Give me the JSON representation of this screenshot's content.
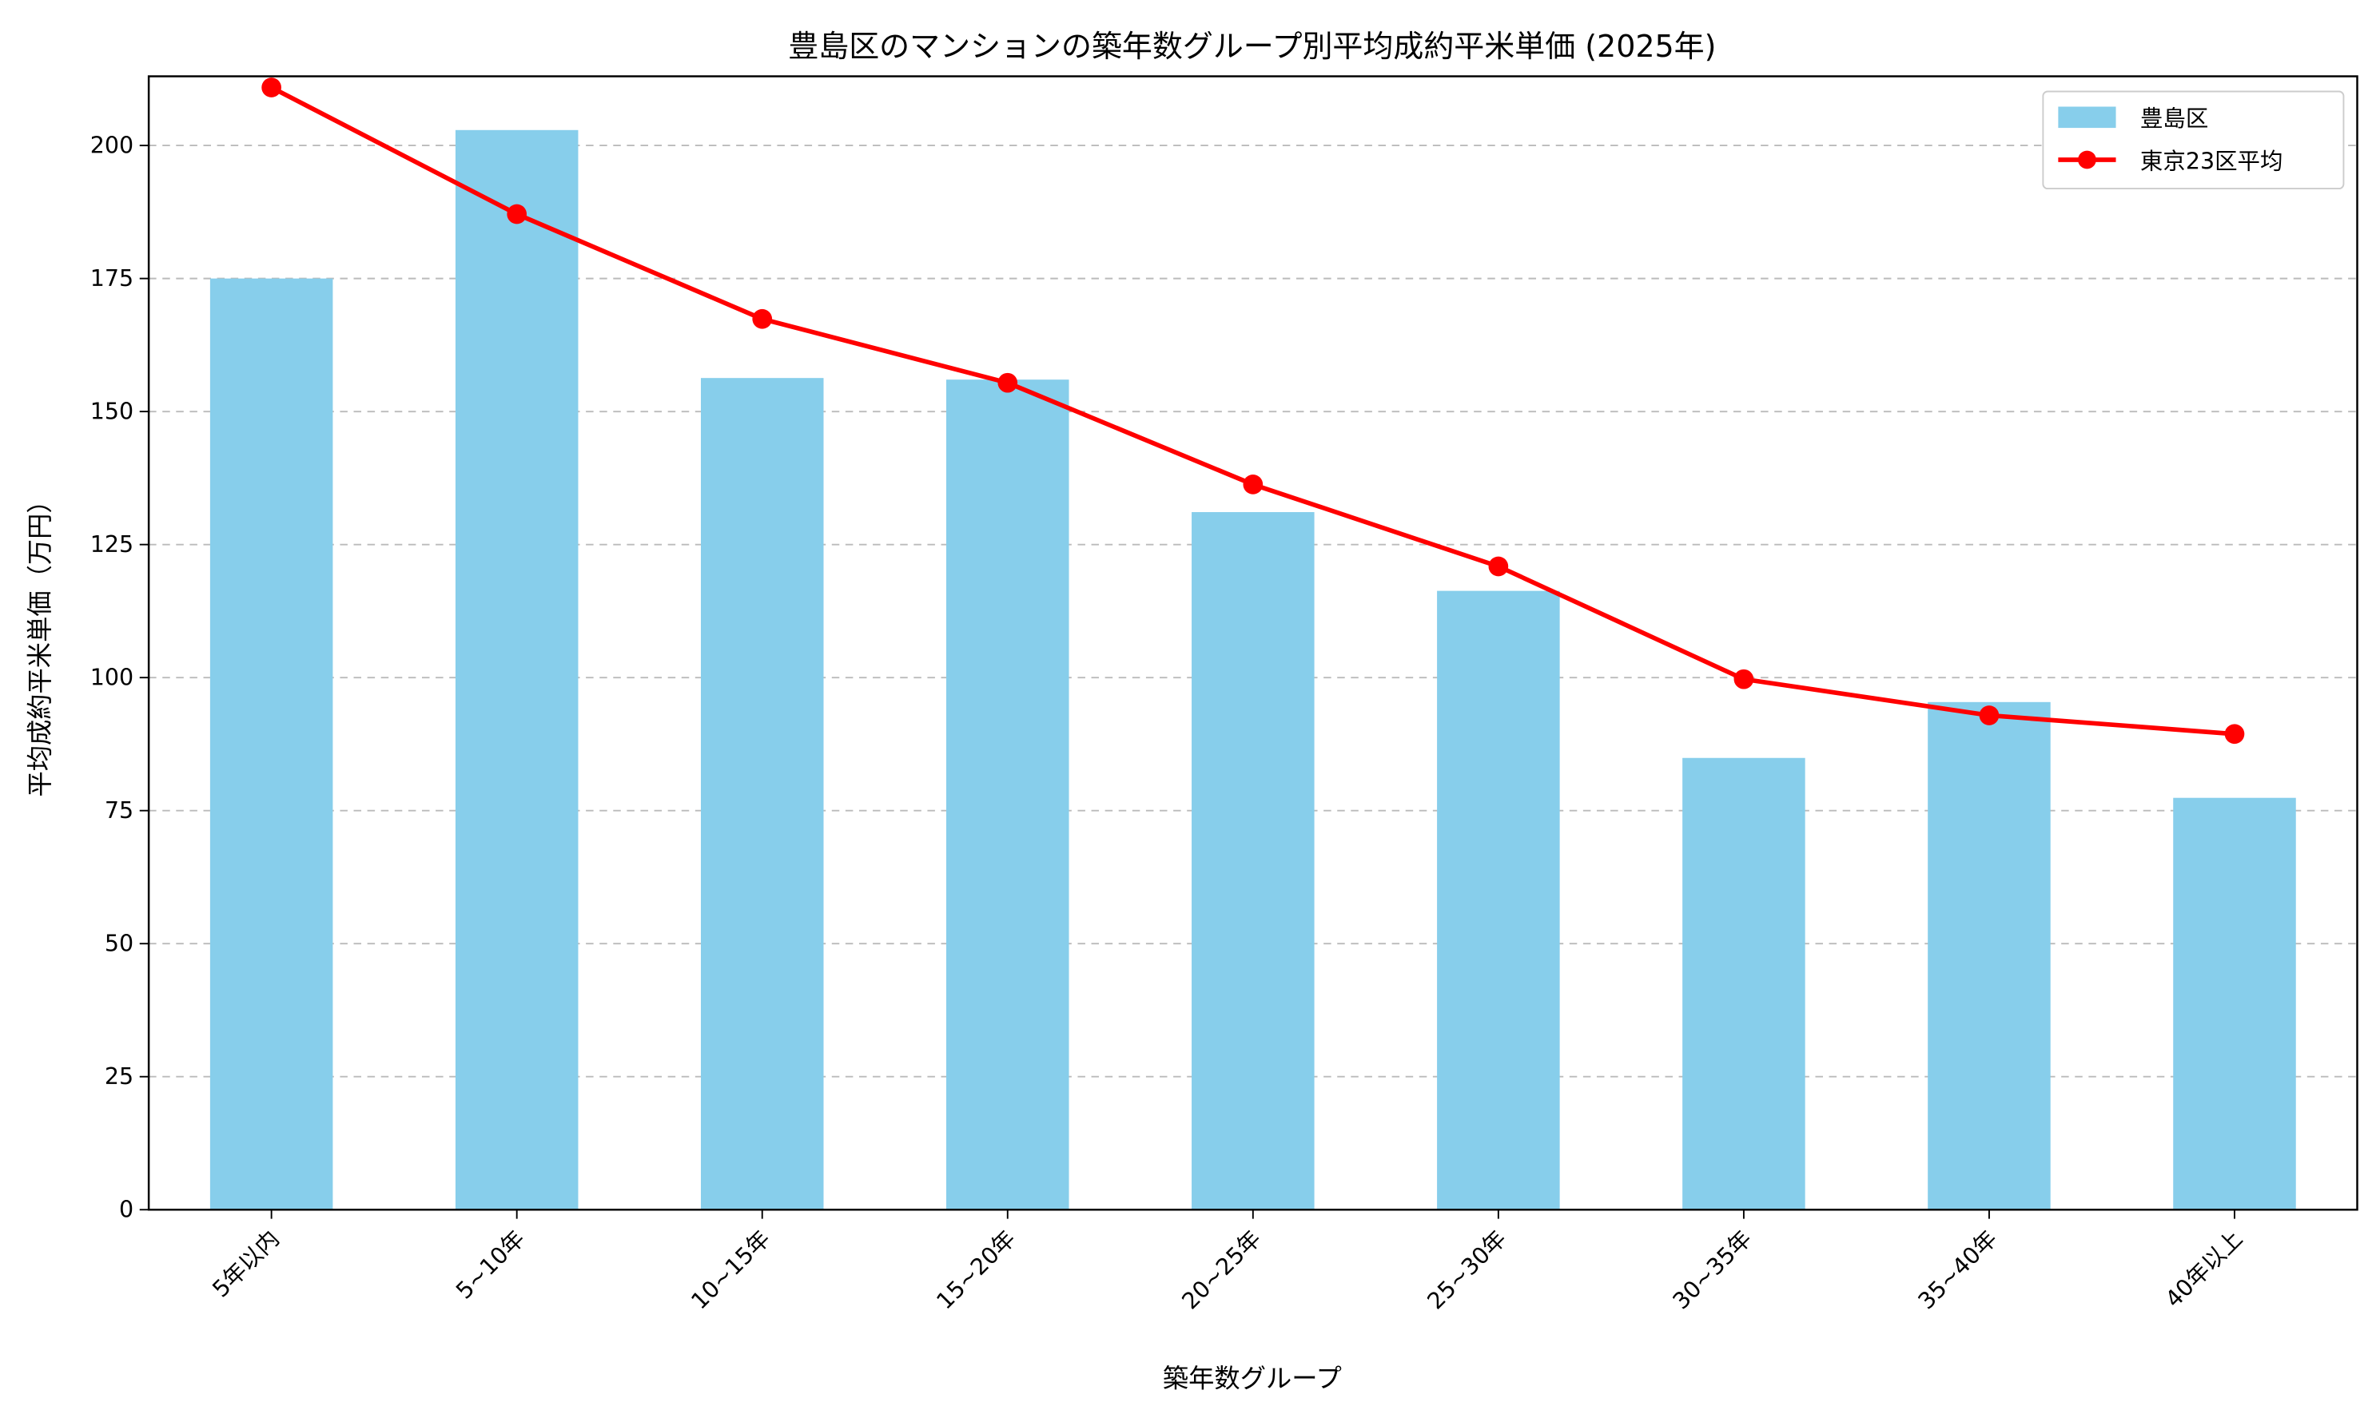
{
  "chart_data": {
    "type": "bar",
    "title": "豊島区のマンションの築年数グループ別平均成約平米単価 (2025年)",
    "xlabel": "築年数グループ",
    "ylabel": "平均成約平米単価（万円）",
    "ylim": [
      0,
      213
    ],
    "yticks": [
      0,
      25,
      50,
      75,
      100,
      125,
      150,
      175,
      200
    ],
    "grid": "y-dashed",
    "legend_position": "top-right",
    "categories": [
      "5年以内",
      "5~10年",
      "10~15年",
      "15~20年",
      "20~25年",
      "25~30年",
      "30~35年",
      "35~40年",
      "40年以上"
    ],
    "series": [
      {
        "name": "豊島区",
        "type": "bar",
        "color": "#87ceeb",
        "values": [
          175.0,
          202.9,
          156.3,
          156.0,
          131.1,
          116.3,
          84.9,
          95.4,
          77.4
        ]
      },
      {
        "name": "東京23区平均",
        "type": "line",
        "color": "#ff0000",
        "marker": "circle",
        "values": [
          210.9,
          187.1,
          167.4,
          155.4,
          136.3,
          120.9,
          99.7,
          92.9,
          89.4
        ]
      }
    ]
  }
}
